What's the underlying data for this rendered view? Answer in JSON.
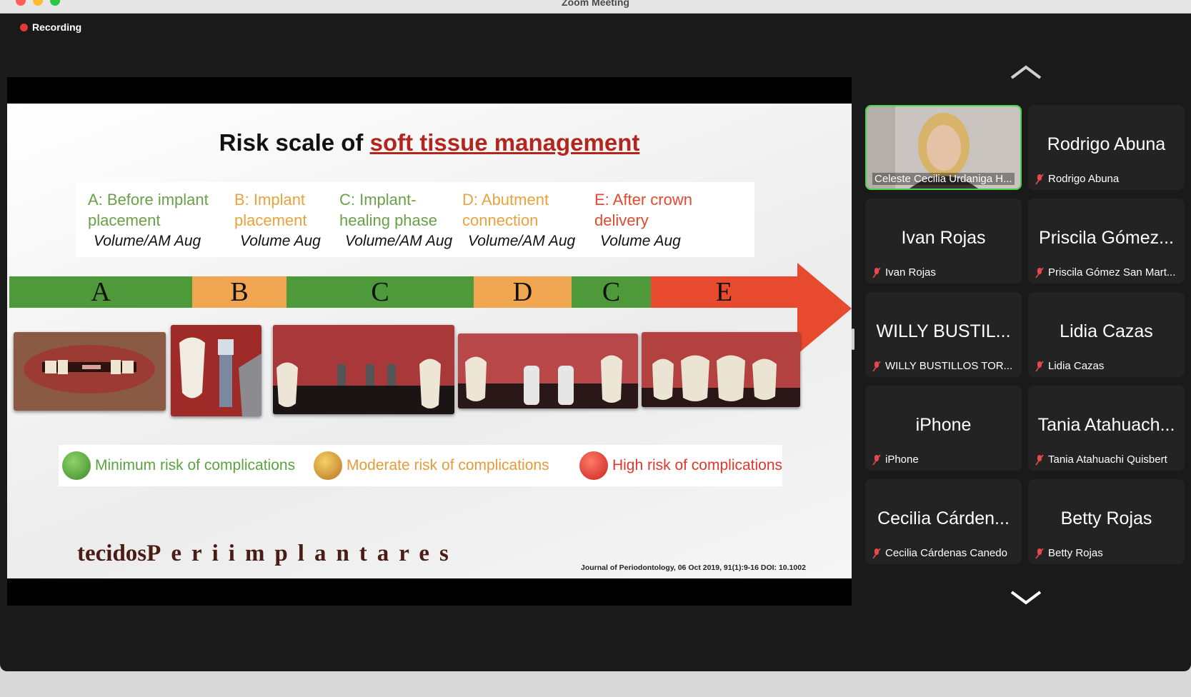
{
  "window": {
    "title": "Zoom Meeting"
  },
  "recording": {
    "label": "Recording"
  },
  "slide": {
    "title_prefix": "Risk scale of ",
    "title_highlight": "soft tissue management",
    "stages": [
      {
        "title": "A: Before implant placement",
        "sub": "Volume/AM Aug",
        "color": "#6aa04a"
      },
      {
        "title": "B: Implant placement",
        "sub": "Volume Aug",
        "color": "#e8a33d"
      },
      {
        "title": "C:  Implant-healing phase",
        "sub": "Volume/AM Aug",
        "color": "#6aa04a"
      },
      {
        "title": "D: Abutment connection",
        "sub": "Volume/AM Aug",
        "color": "#e8a33d"
      },
      {
        "title": "E: After  crown delivery",
        "sub": "Volume Aug",
        "color": "#e2492e"
      }
    ],
    "timeline": [
      {
        "letter": "A",
        "color": "#4e9a3a"
      },
      {
        "letter": "B",
        "color": "#f0a650"
      },
      {
        "letter": "C",
        "color": "#4e9a3a"
      },
      {
        "letter": "D",
        "color": "#f0a650"
      },
      {
        "letter": "C",
        "color": "#4e9a3a"
      },
      {
        "letter": "E",
        "color": "#e84a2f"
      }
    ],
    "legend": [
      {
        "label": "Minimum risk of complications",
        "color": "#5aa33f"
      },
      {
        "label": "Moderate risk of complications",
        "color": "#e89a3a"
      },
      {
        "label": "High risk of complications",
        "color": "#e2362b"
      }
    ],
    "brand_a": "tecidos",
    "brand_b": "Periimplantares",
    "citation": "Journal of Periodontology, 06 Oct 2019, 91(1):9-16 DOI: 10.1002"
  },
  "participants": [
    {
      "big": "",
      "label": "Celeste Cecilia Urdaniga H...",
      "video": true
    },
    {
      "big": "Rodrigo Abuna",
      "label": "Rodrigo Abuna"
    },
    {
      "big": "Ivan Rojas",
      "label": "Ivan Rojas"
    },
    {
      "big": "Priscila Gómez...",
      "label": "Priscila Gómez San Mart..."
    },
    {
      "big": "WILLY BUSTIL...",
      "label": "WILLY BUSTILLOS TOR..."
    },
    {
      "big": "Lidia Cazas",
      "label": "Lidia Cazas"
    },
    {
      "big": "iPhone",
      "label": "iPhone"
    },
    {
      "big": "Tania Atahuach...",
      "label": "Tania Atahuachi Quisbert"
    },
    {
      "big": "Cecilia Cárden...",
      "label": "Cecilia Cárdenas Canedo"
    },
    {
      "big": "Betty Rojas",
      "label": "Betty Rojas"
    }
  ],
  "icons": {
    "up": "chevron-up-icon",
    "down": "chevron-down-icon",
    "mic": "mic-muted-icon"
  }
}
